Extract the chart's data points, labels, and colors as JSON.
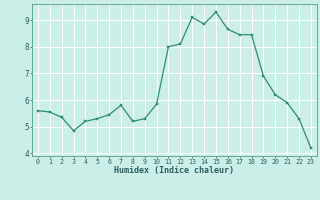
{
  "x": [
    0,
    1,
    2,
    3,
    4,
    5,
    6,
    7,
    8,
    9,
    10,
    11,
    12,
    13,
    14,
    15,
    16,
    17,
    18,
    19,
    20,
    21,
    22,
    23
  ],
  "y": [
    5.6,
    5.55,
    5.35,
    4.85,
    5.2,
    5.3,
    5.45,
    5.8,
    5.2,
    5.3,
    5.85,
    8.0,
    8.1,
    9.1,
    8.85,
    9.3,
    8.65,
    8.45,
    8.45,
    6.9,
    6.2,
    5.9,
    5.3,
    4.2
  ],
  "xlabel": "Humidex (Indice chaleur)",
  "xlim": [
    -0.5,
    23.5
  ],
  "ylim": [
    3.9,
    9.6
  ],
  "yticks": [
    4,
    5,
    6,
    7,
    8,
    9
  ],
  "xticks": [
    0,
    1,
    2,
    3,
    4,
    5,
    6,
    7,
    8,
    9,
    10,
    11,
    12,
    13,
    14,
    15,
    16,
    17,
    18,
    19,
    20,
    21,
    22,
    23
  ],
  "line_color": "#2e8b74",
  "bg_color": "#cceee8",
  "grid_color": "#ffffff",
  "spine_color": "#5a9a8a"
}
